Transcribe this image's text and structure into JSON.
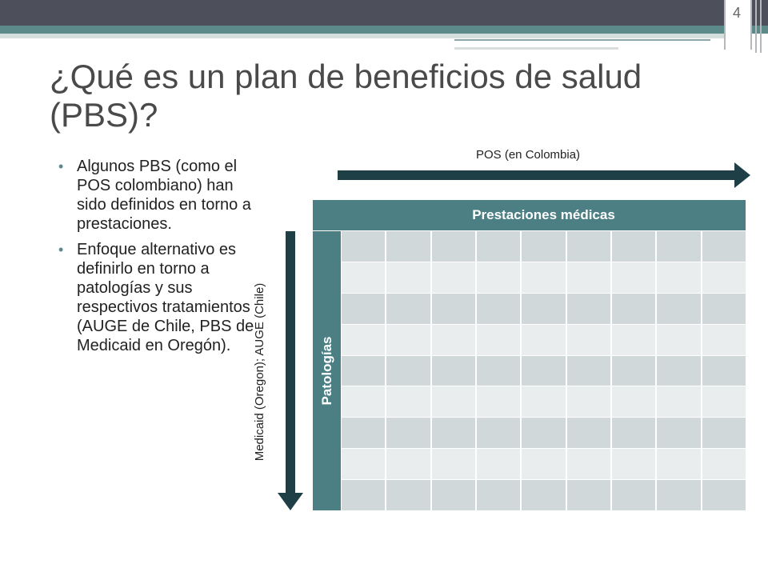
{
  "slide": {
    "number": "4",
    "title": "¿Qué es un plan de beneficios de salud (PBS)?"
  },
  "bullets": [
    "Algunos PBS (como el POS colombiano) han sido definidos en torno a prestaciones.",
    "Enfoque alternativo es definirlo en torno a patologías y sus respectivos tratamientos (AUGE de Chile, PBS de Medicaid en Oregón)."
  ],
  "diagram": {
    "horizontal_arrow_label": "POS (en Colombia)",
    "vertical_arrow_label": "Medicaid (Oregon); AUGE (Chile)",
    "column_header": "Prestaciones médicas",
    "row_header": "Patologías",
    "rows": 9,
    "columns": 9
  },
  "colors": {
    "accent": "#4b7f84",
    "arrow": "#1e3f45",
    "cell_dark": "#d0d8d9",
    "cell_light": "#e9eded"
  }
}
